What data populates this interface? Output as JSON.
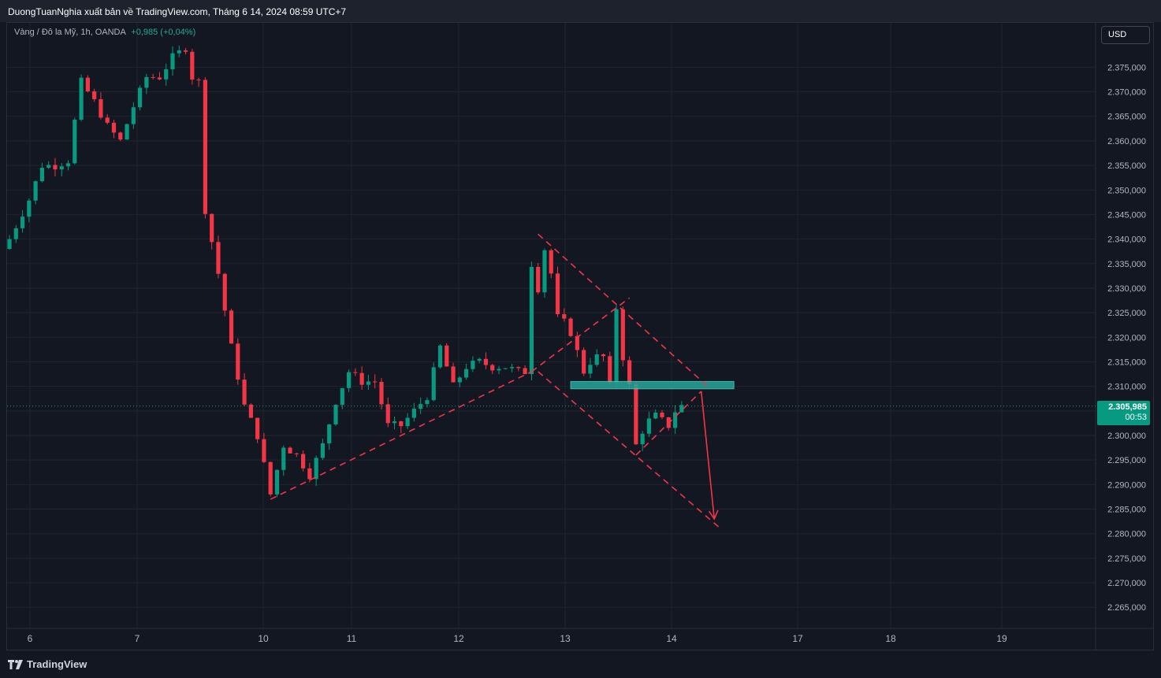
{
  "header": {
    "publisher": "DuongTuanNghia xuất bản về TradingView.com, Tháng 6 14, 2024 08:59 UTC+7"
  },
  "legend": {
    "symbol": "Vàng / Đô la Mỹ, 1h, OANDA",
    "change": "+0,985 (+0,04%)"
  },
  "currency_button": "USD",
  "last_price": {
    "value": "2.305,985",
    "countdown": "00:53"
  },
  "brand": {
    "name": "TradingView"
  },
  "colors": {
    "up": "#089981",
    "down": "#f23645",
    "background": "#131722",
    "annotation": "#f23645",
    "zone": "#26a69a"
  },
  "chart_data": {
    "type": "candlestick",
    "symbol": "XAU/USD",
    "interval": "1h",
    "x_labels": [
      "6",
      "7",
      "10",
      "11",
      "12",
      "13",
      "14",
      "17",
      "18",
      "19"
    ],
    "y_ticks": [
      2375000,
      2370000,
      2365000,
      2360000,
      2355000,
      2350000,
      2345000,
      2340000,
      2335000,
      2330000,
      2325000,
      2320000,
      2315000,
      2310000,
      2305000,
      2300000,
      2295000,
      2290000,
      2285000,
      2280000,
      2275000,
      2270000,
      2265000
    ],
    "y_tick_labels": [
      "2.375,000",
      "2.370,000",
      "2.365,000",
      "2.360,000",
      "2.355,000",
      "2.350,000",
      "2.345,000",
      "2.340,000",
      "2.335,000",
      "2.330,000",
      "2.325,000",
      "2.320,000",
      "2.315,000",
      "2.310,000",
      "2.305,000",
      "2.300,000",
      "2.295,000",
      "2.290,000",
      "2.285,000",
      "2.280,000",
      "2.275,000",
      "2.270,000",
      "2.265,000"
    ],
    "ylim": [
      2262000,
      2380000
    ],
    "grid": true,
    "last_price": 2305985,
    "close_path": [
      [
        0,
        2340000
      ],
      [
        3,
        2348000
      ],
      [
        5,
        2355000
      ],
      [
        7,
        2355000
      ],
      [
        9,
        2356000
      ],
      [
        11,
        2372000
      ],
      [
        13,
        2368000
      ],
      [
        15,
        2363000
      ],
      [
        17,
        2360000
      ],
      [
        19,
        2367000
      ],
      [
        21,
        2373000
      ],
      [
        23,
        2373000
      ],
      [
        25,
        2377000
      ],
      [
        27,
        2379000
      ],
      [
        28,
        2373000
      ],
      [
        29,
        2372000
      ],
      [
        30,
        2346000
      ],
      [
        32,
        2333000
      ],
      [
        34,
        2318000
      ],
      [
        36,
        2306000
      ],
      [
        38,
        2300000
      ],
      [
        40,
        2288000
      ],
      [
        42,
        2298000
      ],
      [
        44,
        2296000
      ],
      [
        46,
        2292000
      ],
      [
        48,
        2298000
      ],
      [
        50,
        2307000
      ],
      [
        52,
        2313000
      ],
      [
        54,
        2311000
      ],
      [
        56,
        2311000
      ],
      [
        58,
        2302000
      ],
      [
        60,
        2302000
      ],
      [
        62,
        2305000
      ],
      [
        64,
        2308000
      ],
      [
        66,
        2318000
      ],
      [
        68,
        2310000
      ],
      [
        70,
        2314000
      ],
      [
        72,
        2315000
      ],
      [
        74,
        2314000
      ],
      [
        76,
        2314000
      ],
      [
        78,
        2313000
      ],
      [
        79,
        2313000
      ],
      [
        80,
        2335000
      ],
      [
        81,
        2330000
      ],
      [
        82,
        2338000
      ],
      [
        83,
        2333000
      ],
      [
        84,
        2324000
      ],
      [
        85,
        2323000
      ],
      [
        86,
        2321000
      ],
      [
        87,
        2317000
      ],
      [
        88,
        2313000
      ],
      [
        89,
        2315000
      ],
      [
        90,
        2316000
      ],
      [
        91,
        2316000
      ],
      [
        92,
        2310000
      ],
      [
        93,
        2326000
      ],
      [
        94,
        2316000
      ],
      [
        95,
        2310000
      ],
      [
        96,
        2298000
      ],
      [
        97,
        2301000
      ],
      [
        98,
        2303000
      ],
      [
        99,
        2304000
      ],
      [
        100,
        2303000
      ],
      [
        101,
        2302000
      ],
      [
        102,
        2305000
      ],
      [
        103,
        2306000
      ]
    ],
    "annotations": {
      "lines": [
        {
          "style": "dashed",
          "points": [
            [
              40,
              2287000
            ],
            [
              80,
              2313000
            ]
          ]
        },
        {
          "style": "dashed",
          "points": [
            [
              80,
              2313000
            ],
            [
              95,
              2328000
            ]
          ]
        },
        {
          "style": "dashed",
          "points": [
            [
              81,
              2341000
            ],
            [
              107,
              2310000
            ]
          ]
        },
        {
          "style": "dashed",
          "points": [
            [
              81,
              2313000
            ],
            [
              109,
              2281000
            ]
          ]
        },
        {
          "style": "dashed",
          "points": [
            [
              96,
              2296000
            ],
            [
              106,
              2309000
            ]
          ]
        },
        {
          "style": "solid-arrow",
          "points": [
            [
              106,
              2309000
            ],
            [
              108,
              2283000
            ]
          ]
        }
      ],
      "zone": {
        "x_start": 86,
        "x_end": 111,
        "y_low": 2309500,
        "y_high": 2311000
      }
    }
  }
}
